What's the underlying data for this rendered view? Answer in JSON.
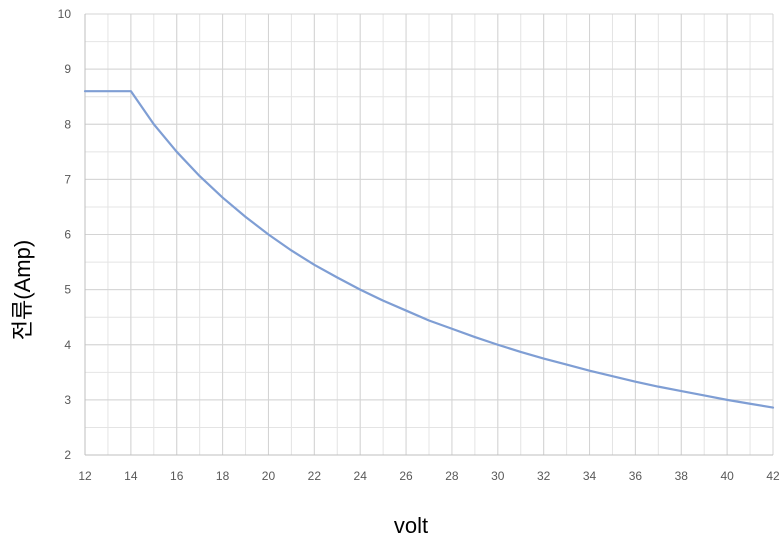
{
  "chart_data": {
    "type": "line",
    "title": "",
    "xlabel": "volt",
    "ylabel": "전류(Amp)",
    "xlim": [
      12,
      42
    ],
    "ylim": [
      2,
      10
    ],
    "x_ticks": [
      "12",
      "14",
      "16",
      "18",
      "20",
      "22",
      "24",
      "26",
      "28",
      "30",
      "32",
      "34",
      "36",
      "38",
      "40",
      "42"
    ],
    "y_ticks": [
      "2",
      "3",
      "4",
      "5",
      "6",
      "7",
      "8",
      "9",
      "10"
    ],
    "minor_x_step": 1,
    "minor_y_step": 0.5,
    "grid": true,
    "legend": "none",
    "line_color": "#7F9ED4",
    "series": [
      {
        "x": [
          12,
          13,
          14,
          15,
          16,
          17,
          18,
          19,
          20,
          21,
          22,
          23,
          24,
          25,
          26,
          27,
          28,
          29,
          30,
          31,
          32,
          33,
          34,
          35,
          36,
          37,
          38,
          39,
          40,
          41,
          42
        ],
        "values": [
          8.6,
          8.6,
          8.6,
          8.0,
          7.5,
          7.06,
          6.67,
          6.32,
          6.0,
          5.71,
          5.45,
          5.22,
          5.0,
          4.8,
          4.62,
          4.44,
          4.29,
          4.14,
          4.0,
          3.87,
          3.75,
          3.64,
          3.53,
          3.43,
          3.33,
          3.24,
          3.16,
          3.08,
          3.0,
          2.93,
          2.86
        ]
      }
    ]
  }
}
